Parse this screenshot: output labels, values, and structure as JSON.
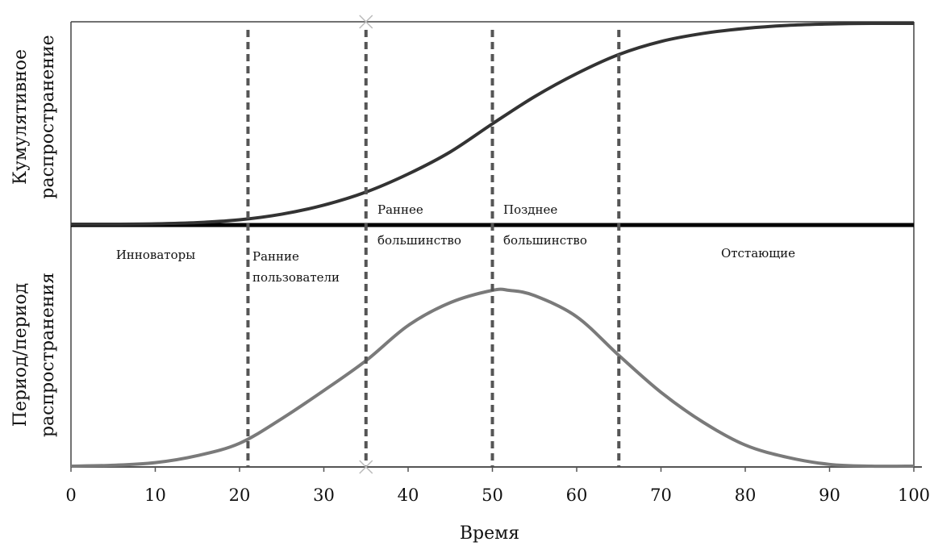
{
  "chart_data": {
    "type": "line",
    "xlabel": "Время",
    "xlim": [
      0,
      100
    ],
    "x_ticks": [
      "0",
      "10",
      "20",
      "30",
      "40",
      "50",
      "60",
      "70",
      "80",
      "90",
      "100"
    ],
    "grid": false,
    "panels": [
      {
        "id": "cumulative",
        "ylabel_lines": [
          "Кумулятивное",
          "распространение"
        ],
        "ylim": [
          0,
          1
        ],
        "series": [
          {
            "color": "#333333",
            "x": [
              0,
              5,
              10,
              15,
              20,
              25,
              30,
              35,
              40,
              45,
              50,
              55,
              60,
              65,
              70,
              75,
              80,
              85,
              90,
              95,
              100
            ],
            "y": [
              0.0,
              0.0,
              0.002,
              0.008,
              0.022,
              0.05,
              0.095,
              0.16,
              0.25,
              0.36,
              0.5,
              0.635,
              0.75,
              0.845,
              0.91,
              0.95,
              0.975,
              0.99,
              0.997,
              1.0,
              1.0
            ]
          }
        ]
      },
      {
        "id": "period",
        "ylabel_lines": [
          "Период/период",
          "распространения"
        ],
        "ylim": [
          0,
          1
        ],
        "series": [
          {
            "color": "#7a7a7a",
            "x": [
              0,
              5,
              10,
              15,
              20,
              25,
              30,
              35,
              40,
              45,
              50,
              52,
              55,
              60,
              65,
              70,
              75,
              80,
              85,
              90,
              95,
              100
            ],
            "y": [
              0.0,
              0.005,
              0.02,
              0.06,
              0.13,
              0.27,
              0.43,
              0.6,
              0.8,
              0.93,
              1.0,
              1.0,
              0.97,
              0.85,
              0.63,
              0.42,
              0.25,
              0.12,
              0.05,
              0.01,
              0.0,
              0.0
            ]
          }
        ]
      }
    ],
    "dividers_x": [
      21,
      35,
      50,
      65
    ],
    "segments": [
      {
        "label_lines": [
          "Инноваторы"
        ]
      },
      {
        "label_lines": [
          "Ранние",
          "пользователи"
        ]
      },
      {
        "label_lines": [
          "Раннее",
          "большинство"
        ]
      },
      {
        "label_lines": [
          "Позднее",
          "большинство"
        ]
      },
      {
        "label_lines": [
          "Отстающие"
        ]
      }
    ]
  }
}
